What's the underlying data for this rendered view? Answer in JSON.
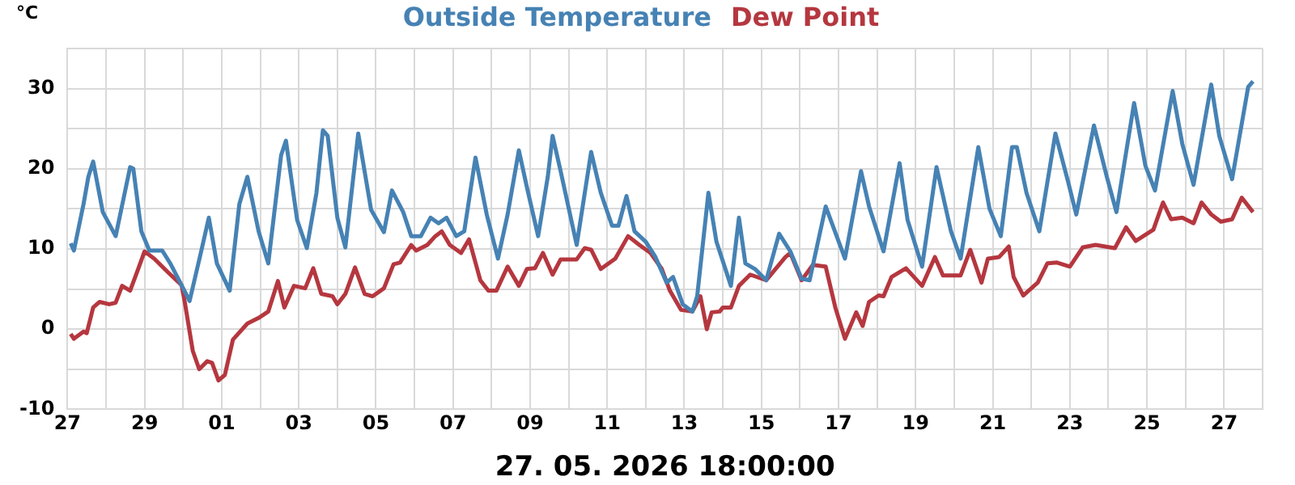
{
  "chart_data": {
    "type": "line",
    "xlabel": "27. 05. 2026 18:00:00",
    "ylabel": "°C",
    "legend": "top",
    "grid": true,
    "xlim": [
      "2026-04-27",
      "2026-05-28"
    ],
    "xticks": [
      {
        "value": "2026-04-27",
        "label": "27"
      },
      {
        "value": "2026-04-28",
        "label": null
      },
      {
        "value": "2026-04-29",
        "label": "29"
      },
      {
        "value": "2026-04-30",
        "label": null
      },
      {
        "value": "2026-05-01",
        "label": "01"
      },
      {
        "value": "2026-05-02",
        "label": null
      },
      {
        "value": "2026-05-03",
        "label": "03"
      },
      {
        "value": "2026-05-04",
        "label": null
      },
      {
        "value": "2026-05-05",
        "label": "05"
      },
      {
        "value": "2026-05-06",
        "label": null
      },
      {
        "value": "2026-05-07",
        "label": "07"
      },
      {
        "value": "2026-05-08",
        "label": null
      },
      {
        "value": "2026-05-09",
        "label": "09"
      },
      {
        "value": "2026-05-10",
        "label": null
      },
      {
        "value": "2026-05-11",
        "label": "11"
      },
      {
        "value": "2026-05-12",
        "label": null
      },
      {
        "value": "2026-05-13",
        "label": "13"
      },
      {
        "value": "2026-05-14",
        "label": null
      },
      {
        "value": "2026-05-15",
        "label": "15"
      },
      {
        "value": "2026-05-16",
        "label": null
      },
      {
        "value": "2026-05-17",
        "label": "17"
      },
      {
        "value": "2026-05-18",
        "label": null
      },
      {
        "value": "2026-05-19",
        "label": "19"
      },
      {
        "value": "2026-05-20",
        "label": null
      },
      {
        "value": "2026-05-21",
        "label": "21"
      },
      {
        "value": "2026-05-22",
        "label": null
      },
      {
        "value": "2026-05-23",
        "label": "23"
      },
      {
        "value": "2026-05-24",
        "label": null
      },
      {
        "value": "2026-05-25",
        "label": "25"
      },
      {
        "value": "2026-05-26",
        "label": null
      },
      {
        "value": "2026-05-27",
        "label": "27"
      },
      {
        "value": "2026-05-28",
        "label": null
      }
    ],
    "ylim": [
      -10,
      35
    ],
    "yticks": [
      -10,
      {
        "value": -5,
        "label": null
      },
      0,
      {
        "value": 5,
        "label": null
      },
      10,
      {
        "value": 15,
        "label": null
      },
      20,
      {
        "value": 25,
        "label": null
      },
      30,
      {
        "value": 35,
        "label": null
      }
    ],
    "series": [
      {
        "name": "Outside Temperature",
        "color": "#4682b4",
        "x": [
          "2026-04-27T02:00",
          "2026-04-27T04:00",
          "2026-04-27T10:00",
          "2026-04-27T13:00",
          "2026-04-27T16:00",
          "2026-04-27T22:00",
          "2026-04-28T06:00",
          "2026-04-28T15:00",
          "2026-04-28T17:00",
          "2026-04-28T22:00",
          "2026-04-29T03:00",
          "2026-04-29T11:00",
          "2026-04-29T16:00",
          "2026-04-29T23:00",
          "2026-04-30T04:00",
          "2026-04-30T11:00",
          "2026-04-30T16:00",
          "2026-04-30T21:00",
          "2026-05-01T05:00",
          "2026-05-01T11:00",
          "2026-05-01T16:00",
          "2026-05-01T23:00",
          "2026-05-02T05:00",
          "2026-05-02T13:00",
          "2026-05-02T16:00",
          "2026-05-02T23:00",
          "2026-05-03T05:00",
          "2026-05-03T11:00",
          "2026-05-03T15:00",
          "2026-05-03T18:00",
          "2026-05-04T00:00",
          "2026-05-04T05:00",
          "2026-05-04T13:00",
          "2026-05-04T21:00",
          "2026-05-05T05:00",
          "2026-05-05T10:00",
          "2026-05-05T17:00",
          "2026-05-05T22:00",
          "2026-05-06T04:00",
          "2026-05-06T10:00",
          "2026-05-06T15:00",
          "2026-05-06T20:00",
          "2026-05-07T02:00",
          "2026-05-07T07:00",
          "2026-05-07T14:00",
          "2026-05-07T21:00",
          "2026-05-08T04:00",
          "2026-05-08T10:00",
          "2026-05-08T17:00",
          "2026-05-08T22:00",
          "2026-05-09T05:00",
          "2026-05-09T11:00",
          "2026-05-09T14:00",
          "2026-05-09T19:00",
          "2026-05-10T05:00",
          "2026-05-10T14:00",
          "2026-05-10T20:00",
          "2026-05-11T03:00",
          "2026-05-11T07:00",
          "2026-05-11T12:00",
          "2026-05-11T17:00",
          "2026-05-12T00:00",
          "2026-05-12T06:00",
          "2026-05-12T13:00",
          "2026-05-12T17:00",
          "2026-05-12T23:00",
          "2026-05-13T05:00",
          "2026-05-13T08:00",
          "2026-05-13T15:00",
          "2026-05-13T20:00",
          "2026-05-14T05:00",
          "2026-05-14T10:00",
          "2026-05-14T14:00",
          "2026-05-14T20:00",
          "2026-05-15T03:00",
          "2026-05-15T11:00",
          "2026-05-15T18:00",
          "2026-05-16T01:00",
          "2026-05-16T06:00",
          "2026-05-16T16:00",
          "2026-05-17T04:00",
          "2026-05-17T14:00",
          "2026-05-17T19:00",
          "2026-05-18T04:00",
          "2026-05-18T14:00",
          "2026-05-18T19:00",
          "2026-05-19T04:00",
          "2026-05-19T13:00",
          "2026-05-19T22:00",
          "2026-05-20T04:00",
          "2026-05-20T15:00",
          "2026-05-20T22:00",
          "2026-05-21T05:00",
          "2026-05-21T12:00",
          "2026-05-21T15:00",
          "2026-05-21T21:00",
          "2026-05-22T05:00",
          "2026-05-22T15:00",
          "2026-05-22T23:00",
          "2026-05-23T04:00",
          "2026-05-23T15:00",
          "2026-05-23T23:00",
          "2026-05-24T05:00",
          "2026-05-24T16:00",
          "2026-05-24T23:00",
          "2026-05-25T05:00",
          "2026-05-25T16:00",
          "2026-05-25T22:00",
          "2026-05-26T05:00",
          "2026-05-26T16:00",
          "2026-05-26T21:00",
          "2026-05-27T05:00",
          "2026-05-27T15:00",
          "2026-05-27T18:00"
        ],
        "values": [
          10.7,
          9.8,
          15.6,
          19,
          20.9,
          14.6,
          11.6,
          20.2,
          20,
          12.2,
          9.8,
          9.8,
          8.2,
          5.5,
          3.5,
          9.5,
          13.9,
          8.2,
          4.8,
          15.6,
          19,
          12.2,
          8.2,
          21.7,
          23.5,
          13.6,
          10.1,
          17,
          24.8,
          24.1,
          13.9,
          10.2,
          24.4,
          14.9,
          12.1,
          17.3,
          14.6,
          11.6,
          11.6,
          13.9,
          13.2,
          13.9,
          11.6,
          12.2,
          21.4,
          14.3,
          8.8,
          14.3,
          22.3,
          17.7,
          11.6,
          19,
          24.1,
          19.7,
          10.5,
          22.1,
          17,
          12.9,
          12.9,
          16.6,
          12.2,
          10.9,
          9,
          5.8,
          6.5,
          3.1,
          2.2,
          4.1,
          17,
          10.9,
          5.4,
          13.9,
          8.2,
          7.5,
          6.1,
          11.9,
          9.7,
          6.3,
          6.1,
          15.3,
          8.8,
          19.7,
          15.3,
          9.7,
          20.7,
          13.6,
          7.8,
          20.2,
          12.2,
          8.8,
          22.7,
          15,
          11.6,
          22.7,
          22.7,
          17,
          12.2,
          24.4,
          18.3,
          14.3,
          25.4,
          19,
          14.6,
          28.2,
          20.4,
          17.3,
          29.7,
          23.1,
          18,
          30.5,
          24.1,
          18.7,
          30.2,
          30.9
        ]
      },
      {
        "name": "Dew Point",
        "color": "#b5373f",
        "x": [
          "2026-04-27T02:00",
          "2026-04-27T04:00",
          "2026-04-27T10:00",
          "2026-04-27T12:00",
          "2026-04-27T16:00",
          "2026-04-27T20:00",
          "2026-04-28T02:00",
          "2026-04-28T06:00",
          "2026-04-28T10:00",
          "2026-04-28T15:00",
          "2026-04-28T20:00",
          "2026-04-29T00:00",
          "2026-04-29T06:00",
          "2026-04-29T14:00",
          "2026-04-29T23:00",
          "2026-04-30T01:00",
          "2026-04-30T06:00",
          "2026-04-30T10:00",
          "2026-04-30T15:00",
          "2026-04-30T18:00",
          "2026-04-30T22:00",
          "2026-05-01T02:00",
          "2026-05-01T07:00",
          "2026-05-01T16:00",
          "2026-05-01T23:00",
          "2026-05-02T05:00",
          "2026-05-02T11:00",
          "2026-05-02T15:00",
          "2026-05-02T21:00",
          "2026-05-03T04:00",
          "2026-05-03T09:00",
          "2026-05-03T14:00",
          "2026-05-03T21:00",
          "2026-05-04T00:00",
          "2026-05-04T05:00",
          "2026-05-04T11:00",
          "2026-05-04T17:00",
          "2026-05-04T22:00",
          "2026-05-05T05:00",
          "2026-05-05T11:00",
          "2026-05-05T15:00",
          "2026-05-05T22:00",
          "2026-05-06T01:00",
          "2026-05-06T08:00",
          "2026-05-06T13:00",
          "2026-05-06T17:00",
          "2026-05-06T22:00",
          "2026-05-07T05:00",
          "2026-05-07T10:00",
          "2026-05-07T17:00",
          "2026-05-07T22:00",
          "2026-05-08T03:00",
          "2026-05-08T10:00",
          "2026-05-08T17:00",
          "2026-05-08T22:00",
          "2026-05-09T03:00",
          "2026-05-09T08:00",
          "2026-05-09T14:00",
          "2026-05-09T19:00",
          "2026-05-10T05:00",
          "2026-05-10T10:00",
          "2026-05-10T14:00",
          "2026-05-10T20:00",
          "2026-05-11T05:00",
          "2026-05-11T13:00",
          "2026-05-11T20:00",
          "2026-05-12T03:00",
          "2026-05-12T10:00",
          "2026-05-12T15:00",
          "2026-05-12T22:00",
          "2026-05-13T05:00",
          "2026-05-13T10:00",
          "2026-05-13T14:00",
          "2026-05-13T17:00",
          "2026-05-13T22:00",
          "2026-05-14T00:00",
          "2026-05-14T05:00",
          "2026-05-14T10:00",
          "2026-05-14T17:00",
          "2026-05-15T03:00",
          "2026-05-15T15:00",
          "2026-05-15T18:00",
          "2026-05-16T01:00",
          "2026-05-16T08:00",
          "2026-05-16T16:00",
          "2026-05-16T22:00",
          "2026-05-17T04:00",
          "2026-05-17T11:00",
          "2026-05-17T15:00",
          "2026-05-17T19:00",
          "2026-05-18T01:00",
          "2026-05-18T04:00",
          "2026-05-18T09:00",
          "2026-05-18T18:00",
          "2026-05-19T04:00",
          "2026-05-19T12:00",
          "2026-05-19T17:00",
          "2026-05-20T04:00",
          "2026-05-20T10:00",
          "2026-05-20T17:00",
          "2026-05-20T21:00",
          "2026-05-21T04:00",
          "2026-05-21T10:00",
          "2026-05-21T13:00",
          "2026-05-21T19:00",
          "2026-05-22T04:00",
          "2026-05-22T10:00",
          "2026-05-22T16:00",
          "2026-05-23T00:00",
          "2026-05-23T08:00",
          "2026-05-23T16:00",
          "2026-05-24T04:00",
          "2026-05-24T11:00",
          "2026-05-24T17:00",
          "2026-05-25T04:00",
          "2026-05-25T10:00",
          "2026-05-25T15:00",
          "2026-05-25T22:00",
          "2026-05-26T05:00",
          "2026-05-26T10:00",
          "2026-05-26T16:00",
          "2026-05-26T22:00",
          "2026-05-27T05:00",
          "2026-05-27T11:00",
          "2026-05-27T18:00"
        ],
        "values": [
          -0.6,
          -1.2,
          -0.3,
          -0.5,
          2.7,
          3.4,
          3.1,
          3.3,
          5.4,
          4.8,
          7.5,
          9.7,
          8.8,
          7.2,
          5.5,
          3.4,
          -2.7,
          -5,
          -4,
          -4.2,
          -6.4,
          -5.7,
          -1.3,
          0.7,
          1.4,
          2.2,
          6,
          2.7,
          5.4,
          5.1,
          7.6,
          4.4,
          4.1,
          3.1,
          4.4,
          7.7,
          4.4,
          4.1,
          5.1,
          8.1,
          8.3,
          10.5,
          9.8,
          10.5,
          11.6,
          12.2,
          10.5,
          9.5,
          11.2,
          6.1,
          4.8,
          4.8,
          7.8,
          5.4,
          7.5,
          7.6,
          9.5,
          6.8,
          8.7,
          8.7,
          10.1,
          9.9,
          7.5,
          8.8,
          11.6,
          10.5,
          9.5,
          7.5,
          4.8,
          2.4,
          2.2,
          4.1,
          0,
          2.1,
          2.2,
          2.7,
          2.7,
          5.4,
          6.8,
          6.1,
          9,
          9.5,
          6.1,
          8,
          7.8,
          2.7,
          -1.2,
          2.1,
          0.4,
          3.4,
          4.2,
          4.1,
          6.5,
          7.6,
          5.4,
          9,
          6.7,
          6.7,
          9.9,
          5.8,
          8.8,
          9,
          10.3,
          6.5,
          4.2,
          5.8,
          8.2,
          8.3,
          7.8,
          10.2,
          10.5,
          10.1,
          12.7,
          11,
          12.4,
          15.8,
          13.7,
          13.9,
          13.2,
          15.8,
          14.3,
          13.4,
          13.7,
          16.4,
          14.6
        ]
      }
    ]
  }
}
